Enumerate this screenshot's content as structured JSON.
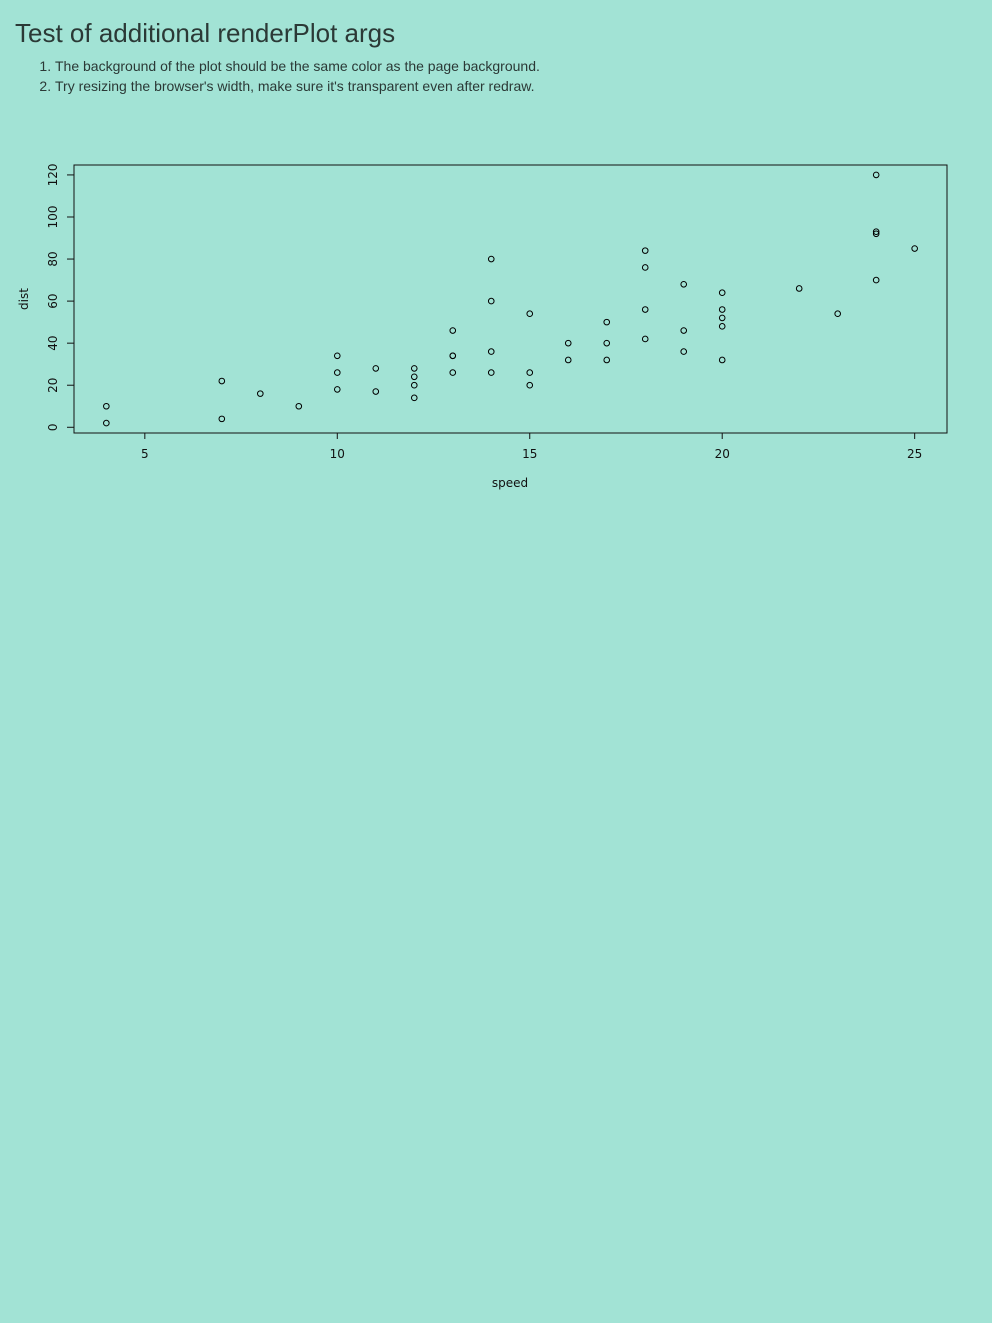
{
  "page": {
    "title": "Test of additional renderPlot args",
    "instructions": [
      "The background of the plot should be the same color as the page background.",
      "Try resizing the browser's width, make sure it's transparent even after redraw."
    ],
    "background_color": "#a2e3d5"
  },
  "chart_data": {
    "type": "scatter",
    "title": "",
    "xlabel": "speed",
    "ylabel": "dist",
    "xlim": [
      3.16,
      25.84
    ],
    "ylim": [
      -2.72,
      124.72
    ],
    "xticks": [
      5,
      10,
      15,
      20,
      25
    ],
    "yticks": [
      0,
      20,
      40,
      60,
      80,
      100,
      120
    ],
    "grid": false,
    "marker": "open-circle",
    "point_color": "#000000",
    "x": [
      4,
      4,
      7,
      7,
      8,
      9,
      10,
      10,
      10,
      11,
      11,
      12,
      12,
      12,
      12,
      13,
      13,
      13,
      13,
      14,
      14,
      14,
      14,
      15,
      15,
      15,
      16,
      16,
      17,
      17,
      17,
      18,
      18,
      18,
      18,
      19,
      19,
      19,
      20,
      20,
      20,
      20,
      20,
      22,
      23,
      24,
      24,
      24,
      24,
      25
    ],
    "y": [
      2,
      10,
      4,
      22,
      16,
      10,
      18,
      26,
      34,
      17,
      28,
      14,
      20,
      24,
      28,
      26,
      34,
      34,
      46,
      26,
      36,
      60,
      80,
      20,
      26,
      54,
      32,
      40,
      32,
      40,
      50,
      42,
      56,
      76,
      84,
      36,
      46,
      68,
      32,
      48,
      52,
      56,
      64,
      66,
      54,
      70,
      92,
      93,
      120,
      85
    ]
  }
}
